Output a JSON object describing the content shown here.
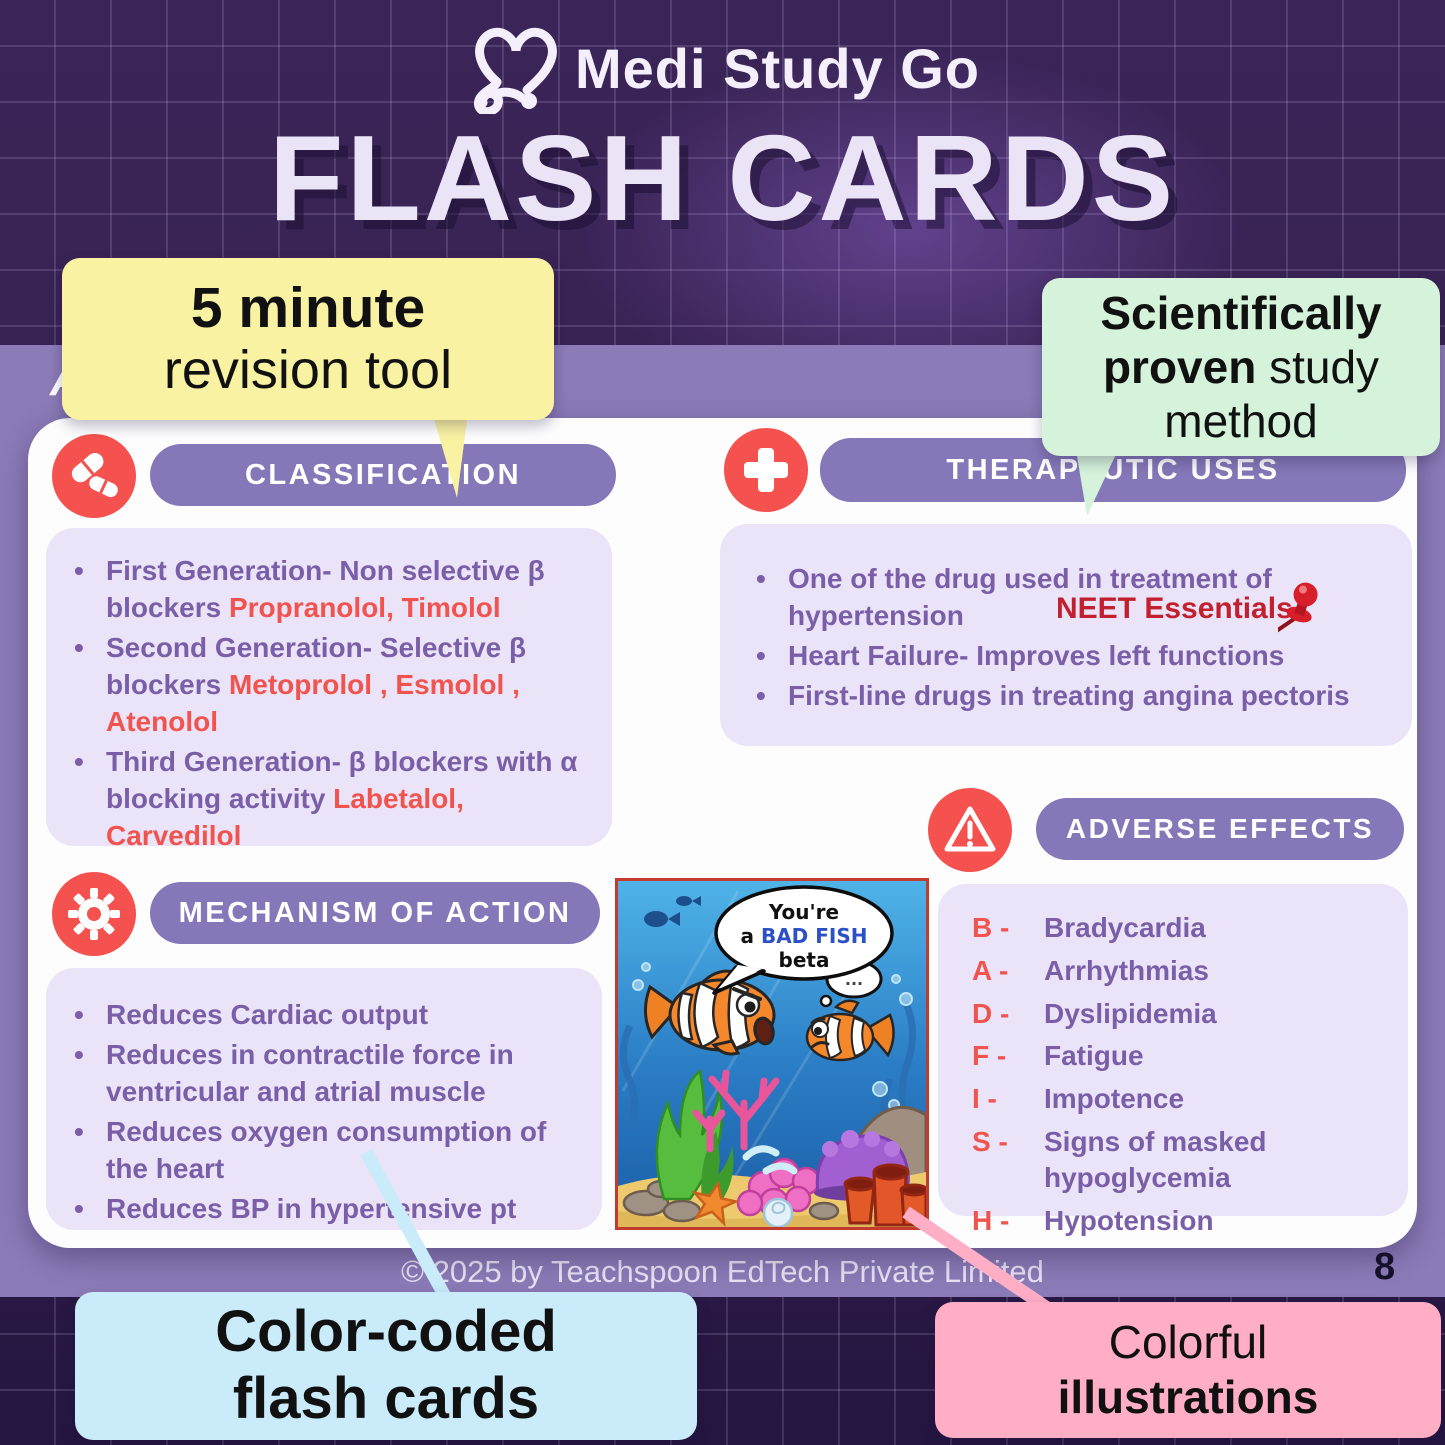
{
  "brand": {
    "name": "Medi Study Go",
    "title": "FLASH CARDS",
    "logo_icon": "heart-stethoscope-icon"
  },
  "band": {
    "partial_letter": "A"
  },
  "annotations": {
    "yellow": {
      "line1": "5 minute",
      "line2": "revision tool"
    },
    "green": {
      "seg1": "Scientifically",
      "seg2": "proven",
      "seg3": " study",
      "seg4": "method"
    },
    "blue": {
      "line1": "Color-coded",
      "line2": "flash cards"
    },
    "pink": {
      "line1": "Colorful",
      "line2": "illustrations"
    }
  },
  "sections": {
    "classification": {
      "icon": "pills-icon",
      "title": "CLASSIFICATION",
      "bullets": [
        [
          {
            "t": "First Generation- Non selective β blockers ",
            "c": "p"
          },
          {
            "t": "Propranolol, Timolol",
            "c": "r"
          }
        ],
        [
          {
            "t": "Second Generation- Selective β blockers ",
            "c": "p"
          },
          {
            "t": "Metoprolol , Esmolol , Atenolol",
            "c": "r"
          }
        ],
        [
          {
            "t": "Third Generation- β blockers with α blocking activity ",
            "c": "p"
          },
          {
            "t": "Labetalol, Carvedilol",
            "c": "r"
          }
        ]
      ]
    },
    "therapeutic": {
      "icon": "medical-cross-icon",
      "title": "THERAPEUTIC USES",
      "badge": "NEET Essentials",
      "badge_icon": "pushpin-icon",
      "bullets": [
        [
          {
            "t": "One of the drug used in treatment of hypertension",
            "c": "p"
          }
        ],
        [
          {
            "t": "Heart Failure- Improves left functions",
            "c": "p"
          }
        ],
        [
          {
            "t": "First-line drugs in treating angina pectoris",
            "c": "p"
          }
        ]
      ]
    },
    "mechanism": {
      "icon": "gear-icon",
      "title": "MECHANISM OF ACTION",
      "bullets": [
        [
          {
            "t": "Reduces Cardiac output",
            "c": "p"
          }
        ],
        [
          {
            "t": "Reduces in contractile force in ventricular and atrial muscle",
            "c": "p"
          }
        ],
        [
          {
            "t": "Reduces oxygen consumption of the heart",
            "c": "p"
          }
        ],
        [
          {
            "t": "Reduces BP in hypertensive pt",
            "c": "p"
          }
        ]
      ]
    },
    "adverse": {
      "icon": "warning-icon",
      "title": "ADVERSE EFFECTS",
      "items": [
        {
          "letter": "B",
          "text": "Bradycardia"
        },
        {
          "letter": "A",
          "text": "Arrhythmias"
        },
        {
          "letter": "D",
          "text": "Dyslipidemia"
        },
        {
          "letter": "F",
          "text": "Fatigue"
        },
        {
          "letter": "I",
          "text": "Impotence"
        },
        {
          "letter": "S",
          "text": "Signs of masked hypoglycemia"
        },
        {
          "letter": "H",
          "text": "Hypotension"
        }
      ]
    }
  },
  "comic": {
    "bubble_main": {
      "line1": "You're",
      "line2_pre": "a ",
      "line2_highlight": "BAD FISH",
      "line3": "beta"
    },
    "bubble_small": "...",
    "highlight_color": "#2b50c8"
  },
  "footer": {
    "copyright": "© 2025 by Teachspoon EdTech Private Limited",
    "page": "8"
  },
  "palette": {
    "background_dark": "#35204f",
    "panel_purple": "#8b7bb7",
    "pill_purple": "#8678b8",
    "content_lavender": "#ebe4f8",
    "text_purple": "#7a5fa8",
    "accent_red": "#f1544e",
    "badge_red": "#c2202e",
    "callout_yellow": "#f8f2a2",
    "callout_green": "#d5f3da",
    "callout_blue": "#c9ebfa",
    "callout_pink": "#ffaec6"
  }
}
